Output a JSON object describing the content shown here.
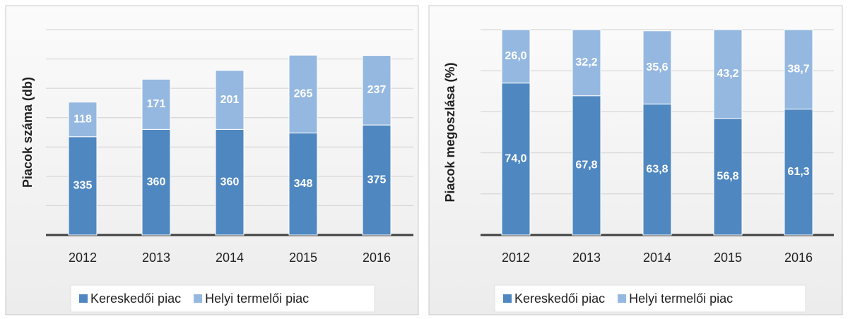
{
  "chart_data": [
    {
      "type": "stacked_bar",
      "y_label": "Piacok száma (db)",
      "categories": [
        "2012",
        "2013",
        "2014",
        "2015",
        "2016"
      ],
      "series": [
        {
          "name": "Kereskedői piac",
          "color": "#4f87c0",
          "values": [
            335,
            360,
            360,
            348,
            375
          ]
        },
        {
          "name": "Helyi termelői piac",
          "color": "#95b8e0",
          "values": [
            118,
            171,
            201,
            265,
            237
          ]
        }
      ],
      "ylim": [
        0,
        700
      ],
      "yticks": [
        0,
        100,
        200,
        300,
        400,
        500,
        600,
        700
      ],
      "grid": true,
      "tick_labels": false,
      "legend": "bottom"
    },
    {
      "type": "stacked_bar",
      "y_label": "Piacok megoszlása (%)",
      "categories": [
        "2012",
        "2013",
        "2014",
        "2015",
        "2016"
      ],
      "series": [
        {
          "name": "Kereskedői piac",
          "color": "#4f87c0",
          "values": [
            74.0,
            67.8,
            63.8,
            56.8,
            61.3
          ],
          "value_labels": [
            "74,0",
            "67,8",
            "63,8",
            "56,8",
            "61,3"
          ]
        },
        {
          "name": "Helyi termelői piac",
          "color": "#95b8e0",
          "values": [
            26.0,
            32.2,
            35.6,
            43.2,
            38.7
          ],
          "value_labels": [
            "26,0",
            "32,2",
            "35,6",
            "43,2",
            "38,7"
          ]
        }
      ],
      "ylim": [
        0,
        100
      ],
      "yticks": [
        0,
        20,
        40,
        60,
        80,
        100
      ],
      "grid": true,
      "tick_labels": false,
      "legend": "bottom"
    }
  ]
}
